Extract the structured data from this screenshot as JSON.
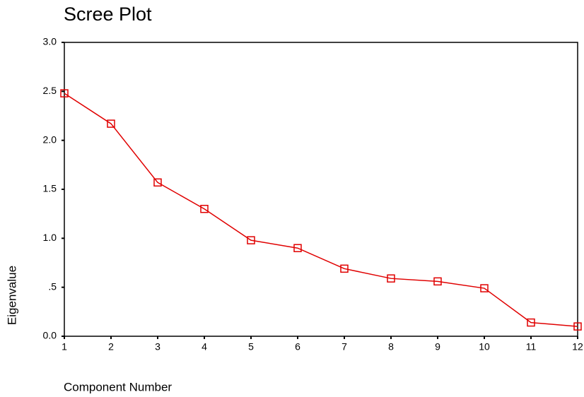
{
  "chart_data": {
    "type": "line",
    "title": "Scree Plot",
    "x_label": "Component Number",
    "y_label": "Eigenvalue",
    "x": [
      1,
      2,
      3,
      4,
      5,
      6,
      7,
      8,
      9,
      10,
      11,
      12
    ],
    "values": [
      2.48,
      2.17,
      1.57,
      1.3,
      0.98,
      0.9,
      0.69,
      0.59,
      0.56,
      0.49,
      0.14,
      0.1
    ],
    "color": "#e00000",
    "marker": "square",
    "xlim": [
      1,
      12
    ],
    "xticks": [
      1,
      2,
      3,
      4,
      5,
      6,
      7,
      8,
      9,
      10,
      11,
      12
    ],
    "ylim": [
      0,
      3
    ],
    "yticks": [
      {
        "value": 0,
        "label": "0.0"
      },
      {
        "value": 0.5,
        "label": ".5"
      },
      {
        "value": 1,
        "label": "1.0"
      },
      1.5,
      {
        "value": 2,
        "label": "2.0"
      },
      2.5,
      {
        "value": 3,
        "label": "3.0"
      }
    ]
  }
}
